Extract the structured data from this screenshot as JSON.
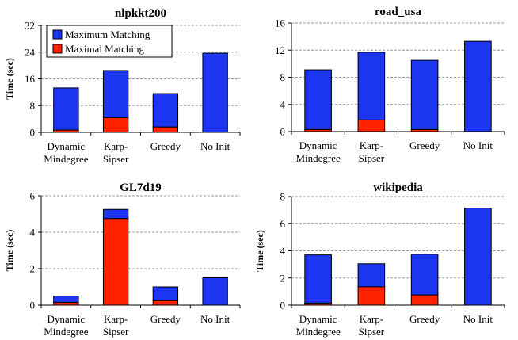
{
  "colors": {
    "max": "#1b35f0",
    "min": "#ff2200",
    "grid": "#999999"
  },
  "legend": {
    "max_label": "Maximum Matching",
    "min_label": "Maximal Matching"
  },
  "chart_data": [
    {
      "type": "bar",
      "title": "nlpkkt200",
      "ylabel": "Time (sec)",
      "categories": [
        [
          "Dynamic",
          "Mindegree"
        ],
        [
          "Karp-",
          "Sipser"
        ],
        [
          "Greedy"
        ],
        [
          "No Init"
        ]
      ],
      "yticks": [
        0,
        8,
        16,
        24,
        32
      ],
      "ylim": [
        0,
        32
      ],
      "stacked": true,
      "series": [
        {
          "name": "Maximal Matching",
          "values": [
            0.7,
            4.4,
            1.6,
            0.0
          ]
        },
        {
          "name": "Maximum Matching",
          "values": [
            12.6,
            14.1,
            10.0,
            23.7
          ]
        }
      ],
      "legend_position": "top-left"
    },
    {
      "type": "bar",
      "title": "road_usa",
      "ylabel": "",
      "categories": [
        [
          "Dynamic",
          "Mindegree"
        ],
        [
          "Karp-",
          "Sipser"
        ],
        [
          "Greedy"
        ],
        [
          "No Init"
        ]
      ],
      "yticks": [
        0,
        4,
        8,
        12,
        16
      ],
      "ylim": [
        0,
        16
      ],
      "stacked": true,
      "series": [
        {
          "name": "Maximal Matching",
          "values": [
            0.3,
            1.7,
            0.3,
            0.0
          ]
        },
        {
          "name": "Maximum Matching",
          "values": [
            8.8,
            10.0,
            10.2,
            13.3
          ]
        }
      ]
    },
    {
      "type": "bar",
      "title": "GL7d19",
      "ylabel": "Time (sec)",
      "categories": [
        [
          "Dynamic",
          "Mindegree"
        ],
        [
          "Karp-",
          "Sipser"
        ],
        [
          "Greedy"
        ],
        [
          "No Init"
        ]
      ],
      "yticks": [
        0,
        2,
        4,
        6
      ],
      "ylim": [
        0,
        6
      ],
      "stacked": true,
      "series": [
        {
          "name": "Maximal Matching",
          "values": [
            0.15,
            4.75,
            0.25,
            0.0
          ]
        },
        {
          "name": "Maximum Matching",
          "values": [
            0.35,
            0.5,
            0.75,
            1.5
          ]
        }
      ]
    },
    {
      "type": "bar",
      "title": "wikipedia",
      "ylabel": "Time (sec)",
      "categories": [
        [
          "Dynamic",
          "Mindegree"
        ],
        [
          "Karp-",
          "Sipser"
        ],
        [
          "Greedy"
        ],
        [
          "No Init"
        ]
      ],
      "yticks": [
        0,
        2,
        4,
        6,
        8
      ],
      "ylim": [
        0,
        8
      ],
      "stacked": true,
      "series": [
        {
          "name": "Maximal Matching",
          "values": [
            0.15,
            1.35,
            0.75,
            0.0
          ]
        },
        {
          "name": "Maximum Matching",
          "values": [
            3.55,
            1.7,
            3.0,
            7.15
          ]
        }
      ]
    }
  ]
}
